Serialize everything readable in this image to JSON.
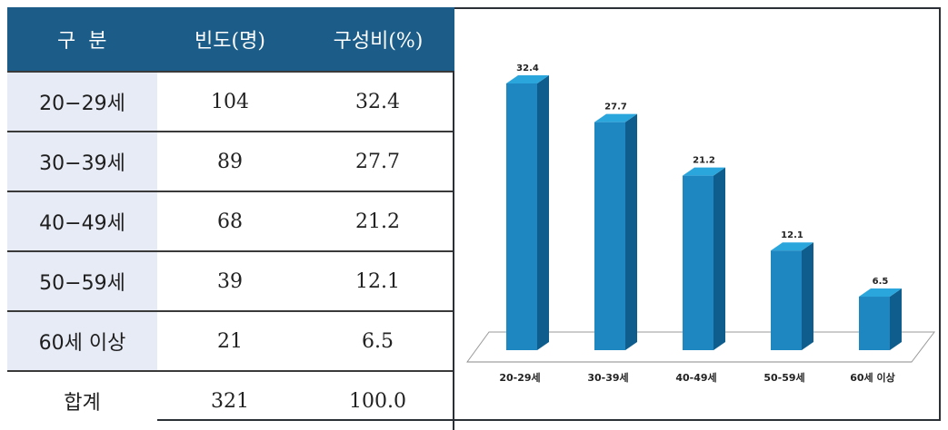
{
  "table": {
    "headers": [
      "구  분",
      "빈도(명)",
      "구성비(%)"
    ],
    "rows": [
      {
        "label": "20−29세",
        "freq": "104",
        "pct": "32.4"
      },
      {
        "label": "30−39세",
        "freq": "89",
        "pct": "27.7"
      },
      {
        "label": "40−49세",
        "freq": "68",
        "pct": "21.2"
      },
      {
        "label": "50−59세",
        "freq": "39",
        "pct": "12.1"
      },
      {
        "label": "60세 이상",
        "freq": "21",
        "pct": "6.5"
      },
      {
        "label": "합계",
        "freq": "321",
        "pct": "100.0"
      }
    ]
  },
  "colors": {
    "header_bg": "#1b5d88",
    "bar_front": "#1e86c1",
    "bar_top": "#2aa6dd",
    "bar_side": "#0f5d8c",
    "label_bg": "#e7ebf5"
  },
  "chart_data": {
    "type": "bar",
    "categories": [
      "20-29세",
      "30-39세",
      "40-49세",
      "50-59세",
      "60세 이상"
    ],
    "values": [
      32.4,
      27.7,
      21.2,
      12.1,
      6.5
    ],
    "value_labels": [
      "32.4",
      "27.7",
      "21.2",
      "12.1",
      "6.5"
    ],
    "title": "",
    "xlabel": "",
    "ylabel": "",
    "ylim": [
      0,
      32.4
    ],
    "grid": false,
    "legend": "none",
    "style": "3d-column"
  }
}
